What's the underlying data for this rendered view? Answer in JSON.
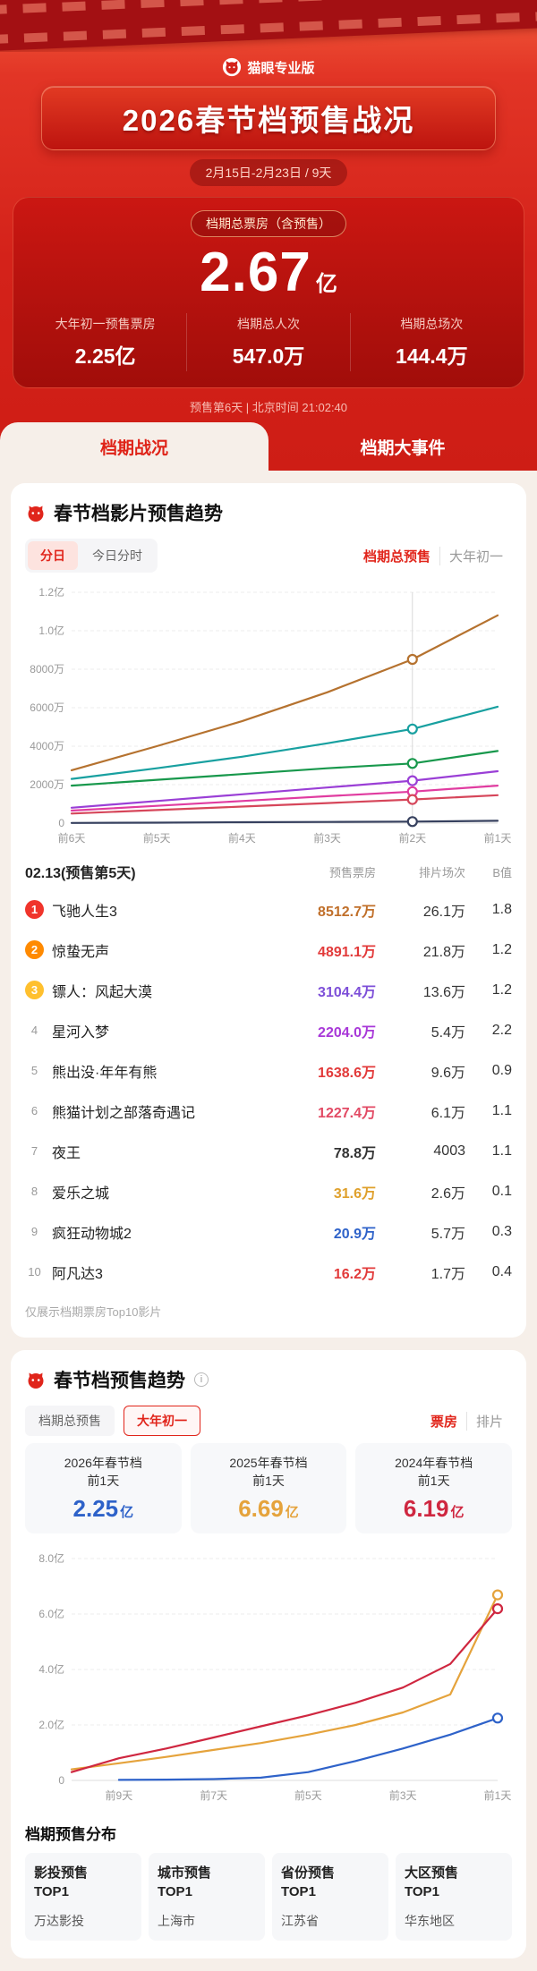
{
  "brand": {
    "name": "猫眼专业版"
  },
  "icons": {
    "info": "i"
  },
  "colors": {
    "accent": "#e1251b"
  },
  "hero": {
    "title": "2026春节档预售战况",
    "date_range": "2月15日-2月23日 / 9天",
    "total_label": "档期总票房（含预售）",
    "total_value": "2.67",
    "total_unit": "亿",
    "stats": [
      {
        "label": "大年初一预售票房",
        "value": "2.25亿"
      },
      {
        "label": "档期总人次",
        "value": "547.0万"
      },
      {
        "label": "档期总场次",
        "value": "144.4万"
      }
    ],
    "update_line": "预售第6天 | 北京时间 21:02:40",
    "tabs": [
      {
        "label": "档期战况",
        "active": true
      },
      {
        "label": "档期大事件",
        "active": false
      }
    ]
  },
  "card1": {
    "title": "春节档影片预售趋势",
    "toggles": [
      {
        "label": "分日",
        "active": true
      },
      {
        "label": "今日分时",
        "active": false
      }
    ],
    "series_toggle": [
      {
        "label": "档期总预售",
        "active": true
      },
      {
        "label": "大年初一",
        "active": false
      }
    ],
    "table": {
      "date_label": "02.13(预售第5天)",
      "columns": [
        "预售票房",
        "排片场次",
        "B值"
      ],
      "rows": [
        {
          "rank": 1,
          "name": "飞驰人生3",
          "presale": "8512.7万",
          "shows": "26.1万",
          "b": "1.8",
          "value_color": "#c06f2a"
        },
        {
          "rank": 2,
          "name": "惊蛰无声",
          "presale": "4891.1万",
          "shows": "21.8万",
          "b": "1.2",
          "value_color": "#e23a3a"
        },
        {
          "rank": 3,
          "name": "镖人：风起大漠",
          "presale": "3104.4万",
          "shows": "13.6万",
          "b": "1.2",
          "value_color": "#7d4fd8"
        },
        {
          "rank": 4,
          "name": "星河入梦",
          "presale": "2204.0万",
          "shows": "5.4万",
          "b": "2.2",
          "value_color": "#a838d8"
        },
        {
          "rank": 5,
          "name": "熊出没·年年有熊",
          "presale": "1638.6万",
          "shows": "9.6万",
          "b": "0.9",
          "value_color": "#e23a3a"
        },
        {
          "rank": 6,
          "name": "熊猫计划之部落奇遇记",
          "presale": "1227.4万",
          "shows": "6.1万",
          "b": "1.1",
          "value_color": "#e24a64"
        },
        {
          "rank": 7,
          "name": "夜王",
          "presale": "78.8万",
          "shows": "4003",
          "b": "1.1",
          "value_color": "#333333"
        },
        {
          "rank": 8,
          "name": "爱乐之城",
          "presale": "31.6万",
          "shows": "2.6万",
          "b": "0.1",
          "value_color": "#dfa02c"
        },
        {
          "rank": 9,
          "name": "疯狂动物城2",
          "presale": "20.9万",
          "shows": "5.7万",
          "b": "0.3",
          "value_color": "#2e62c9"
        },
        {
          "rank": 10,
          "name": "阿凡达3",
          "presale": "16.2万",
          "shows": "1.7万",
          "b": "0.4",
          "value_color": "#e23a3a"
        }
      ],
      "note": "仅展示档期票房Top10影片"
    }
  },
  "card2": {
    "title": "春节档预售趋势",
    "toggles": [
      {
        "label": "档期总预售",
        "active": false
      },
      {
        "label": "大年初一",
        "active": true
      }
    ],
    "metric_toggle": [
      {
        "label": "票房",
        "active": true
      },
      {
        "label": "排片",
        "active": false
      }
    ],
    "compare": [
      {
        "title": "2026年春节档",
        "sub": "前1天",
        "value": "2.25",
        "unit": "亿",
        "color": "#2e62c9"
      },
      {
        "title": "2025年春节档",
        "sub": "前1天",
        "value": "6.69",
        "unit": "亿",
        "color": "#e5a33c"
      },
      {
        "title": "2024年春节档",
        "sub": "前1天",
        "value": "6.19",
        "unit": "亿",
        "color": "#cf2740"
      }
    ]
  },
  "footer": {
    "title": "档期预售分布",
    "boxes": [
      {
        "label": "影投预售",
        "top": "TOP1",
        "value": "万达影投"
      },
      {
        "label": "城市预售",
        "top": "TOP1",
        "value": "上海市"
      },
      {
        "label": "省份预售",
        "top": "TOP1",
        "value": "江苏省"
      },
      {
        "label": "大区预售",
        "top": "TOP1",
        "value": "华东地区"
      }
    ]
  },
  "chart_data": [
    {
      "type": "line",
      "title": "春节档影片预售趋势（档期总预售，分日）",
      "x_labels": [
        "前6天",
        "前5天",
        "前4天",
        "前3天",
        "前2天",
        "前1天"
      ],
      "y_ticks": [
        "0",
        "2000万",
        "4000万",
        "6000万",
        "8000万",
        "1.0亿",
        "1.2亿"
      ],
      "ylim": [
        0,
        12000
      ],
      "unit": "万",
      "grid": true,
      "highlight_index": 4,
      "series": [
        {
          "name": "飞驰人生3",
          "color": "#b5722f",
          "values": [
            2750,
            4000,
            5300,
            6800,
            8512.7,
            10800
          ]
        },
        {
          "name": "惊蛰无声",
          "color": "#18a0a0",
          "values": [
            2300,
            2850,
            3450,
            4150,
            4891.1,
            6050
          ]
        },
        {
          "name": "镖人：风起大漠",
          "color": "#18984c",
          "values": [
            1950,
            2250,
            2550,
            2850,
            3104.4,
            3750
          ]
        },
        {
          "name": "星河入梦",
          "color": "#9a3fd6",
          "values": [
            800,
            1150,
            1500,
            1850,
            2204.0,
            2700
          ]
        },
        {
          "name": "熊出没·年年有熊",
          "color": "#e03ca0",
          "values": [
            650,
            900,
            1150,
            1400,
            1638.6,
            1950
          ]
        },
        {
          "name": "熊猫计划之部落奇遇记",
          "color": "#d6465a",
          "values": [
            500,
            680,
            860,
            1040,
            1227.4,
            1450
          ]
        },
        {
          "name": "夜王",
          "color": "#37415f",
          "values": [
            10,
            25,
            45,
            60,
            78.8,
            120
          ]
        }
      ]
    },
    {
      "type": "line",
      "title": "春节档预售趋势（大年初一，票房）",
      "x_labels": [
        "前9天",
        "前7天",
        "前5天",
        "前3天",
        "前1天"
      ],
      "label_indices": [
        1,
        3,
        5,
        7,
        9
      ],
      "x_count": 10,
      "y_ticks": [
        "0",
        "2.0亿",
        "4.0亿",
        "6.0亿",
        "8.0亿"
      ],
      "ylim": [
        0,
        8
      ],
      "unit": "亿",
      "grid": true,
      "series": [
        {
          "name": "2026年春节档",
          "color": "#2e62c9",
          "values": [
            null,
            0.02,
            0.03,
            0.05,
            0.1,
            0.3,
            0.7,
            1.15,
            1.65,
            2.25
          ]
        },
        {
          "name": "2025年春节档",
          "color": "#e5a33c",
          "values": [
            0.4,
            0.62,
            0.85,
            1.1,
            1.35,
            1.65,
            2.0,
            2.45,
            3.1,
            6.69
          ]
        },
        {
          "name": "2024年春节档",
          "color": "#cf2740",
          "values": [
            0.3,
            0.8,
            1.15,
            1.55,
            1.95,
            2.35,
            2.8,
            3.35,
            4.2,
            6.19
          ]
        }
      ]
    }
  ]
}
